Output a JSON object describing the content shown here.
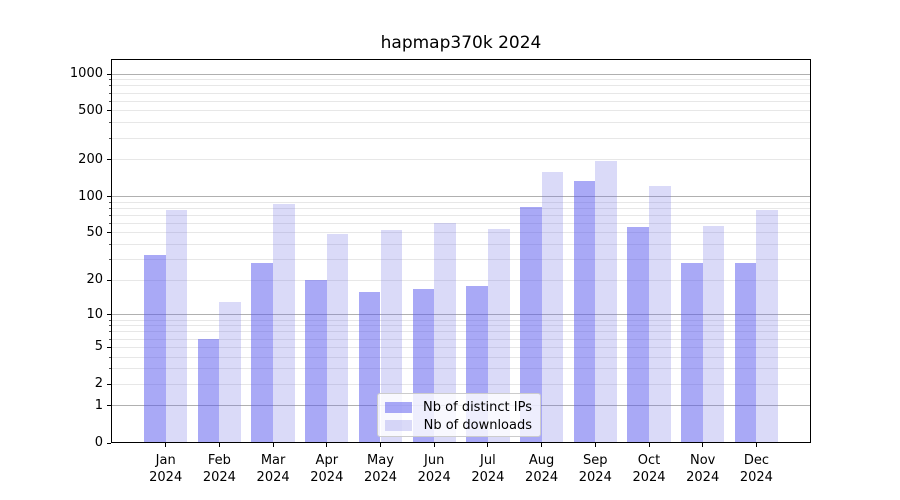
{
  "chart_data": {
    "type": "bar",
    "title": "hapmap370k 2024",
    "categories": [
      "Jan",
      "Feb",
      "Mar",
      "Apr",
      "May",
      "Jun",
      "Jul",
      "Aug",
      "Sep",
      "Oct",
      "Nov",
      "Dec"
    ],
    "x_tick_year": "2024",
    "series": [
      {
        "name": "Nb of distinct IPs",
        "values": [
          33,
          6,
          28,
          20,
          16,
          17,
          18,
          82,
          134,
          56,
          28,
          28
        ],
        "fill_rgba": "rgba(83,83,237,0.5)",
        "color_on_white": "#a9a9f6"
      },
      {
        "name": "Nb of downloads",
        "values": [
          77,
          13,
          87,
          49,
          53,
          61,
          54,
          158,
          195,
          121,
          57,
          77
        ],
        "fill_rgba": "rgba(107,107,227,0.25)",
        "color_on_white": "#dadaf8"
      }
    ],
    "y_tick_labels": [
      "0",
      "1",
      "2",
      "5",
      "10",
      "20",
      "50",
      "100",
      "200",
      "500",
      "1000"
    ],
    "y_ticks": [
      0,
      1,
      2,
      5,
      10,
      20,
      50,
      100,
      200,
      500,
      1000
    ],
    "y_scale": "log1p",
    "ylim": [
      0,
      1300
    ],
    "grid": true,
    "grid_major_ticks": [
      1,
      10,
      100,
      1000
    ],
    "legend_position": "lower center",
    "colors": {
      "grid_major": "#b0b0b0",
      "grid_minor": "#e7e7e7",
      "spine": "#000000",
      "text": "#000000",
      "legend_border": "#cccccc",
      "background": "#ffffff"
    }
  }
}
